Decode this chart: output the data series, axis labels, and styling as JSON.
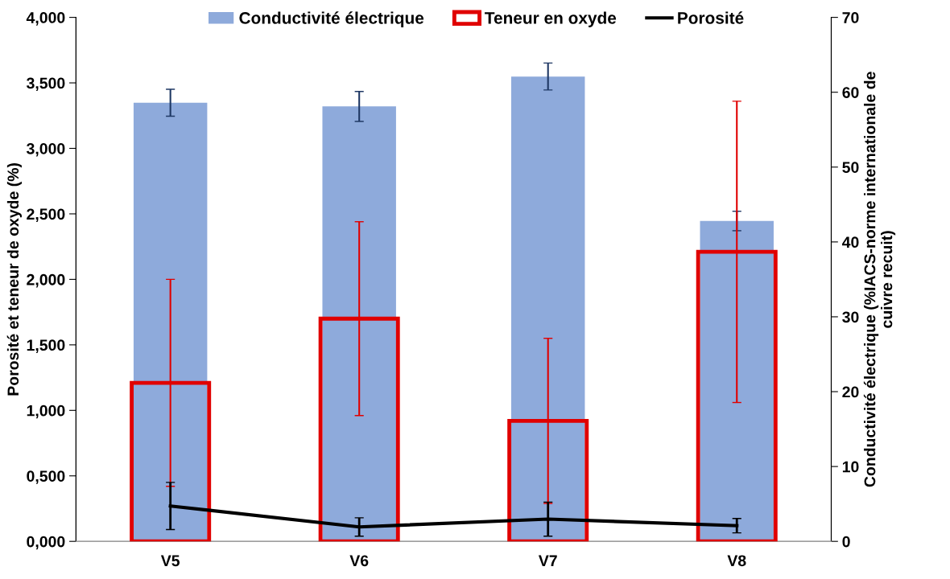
{
  "chart_data": {
    "type": "bar",
    "categories": [
      "V5",
      "V6",
      "V7",
      "V8"
    ],
    "ylabel": "Porosité et teneur de oxyde (%)",
    "y2label": "Conductivité électrique (%IACS-norme internationale de\ncuivre recuit)",
    "series": [
      {
        "name": "Conductivité électrique",
        "axis": "y2",
        "color": "#8eaadb",
        "values": [
          58.6,
          58.1,
          62.1,
          42.8
        ],
        "errors": [
          1.8,
          2.0,
          1.8,
          1.3
        ]
      },
      {
        "name": "Teneur en oxyde",
        "axis": "y",
        "color": "#e00000",
        "values": [
          1.21,
          1.7,
          0.92,
          2.21
        ],
        "errors": [
          0.79,
          0.74,
          0.63,
          1.15
        ]
      },
      {
        "name": "Porosité",
        "type": "line",
        "axis": "y",
        "color": "#000000",
        "values": [
          0.27,
          0.11,
          0.17,
          0.12
        ],
        "errors": [
          0.18,
          0.07,
          0.13,
          0.055
        ]
      }
    ],
    "ylim": [
      0,
      4
    ],
    "yticks": [
      {
        "value": 0,
        "label": "0,000"
      },
      {
        "value": 0.5,
        "label": "0,500"
      },
      {
        "value": 1,
        "label": "1,000"
      },
      {
        "value": 1.5,
        "label": "1,500"
      },
      {
        "value": 2,
        "label": "2,000"
      },
      {
        "value": 2.5,
        "label": "2,500"
      },
      {
        "value": 3,
        "label": "3,000"
      },
      {
        "value": 3.5,
        "label": "3,500"
      },
      {
        "value": 4,
        "label": "4,000"
      }
    ],
    "y2lim": [
      0,
      70
    ],
    "y2ticks": [
      0,
      10,
      20,
      30,
      40,
      50,
      60,
      70
    ],
    "legend": "top",
    "grid": false,
    "marker": "none",
    "line_style": "solid"
  }
}
